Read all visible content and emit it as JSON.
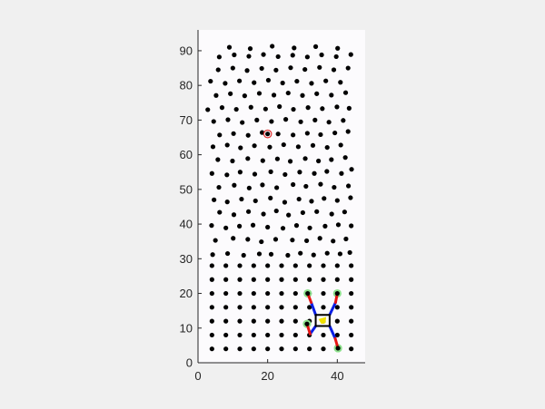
{
  "figure": {
    "background": "#f0f0f0",
    "axes_background": "#fcfbfd"
  },
  "chart_data": {
    "type": "scatter",
    "title": "",
    "xlabel": "",
    "ylabel": "",
    "xlim": [
      0,
      48
    ],
    "ylim": [
      0,
      96
    ],
    "xticks": [
      0,
      20,
      40
    ],
    "yticks": [
      0,
      10,
      20,
      30,
      40,
      50,
      60,
      70,
      80,
      90
    ],
    "grid": false,
    "colors": {
      "points": "#000000",
      "target_ring": "#e03030",
      "contact": "#8ce08c",
      "leg_upper": "#0a1ee6",
      "leg_lower": "#e61414",
      "body_outline": "#000000",
      "body_center": "#f0e000"
    },
    "series": [
      {
        "role": "grid-points",
        "rows": [
          {
            "y": 4,
            "x": [
              4,
              8,
              12,
              16,
              20,
              24,
              28,
              32,
              36,
              40,
              44
            ]
          },
          {
            "y": 8,
            "x": [
              4,
              8,
              12,
              16,
              20,
              24,
              28,
              32,
              36,
              40,
              44
            ]
          },
          {
            "y": 12,
            "x": [
              4,
              8,
              12,
              16,
              20,
              24,
              28,
              32,
              36,
              40,
              44
            ]
          },
          {
            "y": 16,
            "x": [
              4,
              8,
              12,
              16,
              20,
              24,
              28,
              32,
              36,
              40,
              44
            ]
          },
          {
            "y": 20,
            "x": [
              4,
              8,
              12,
              16,
              20,
              24,
              28,
              32,
              36,
              40,
              44
            ]
          },
          {
            "y": 24,
            "x": [
              4,
              8,
              12,
              16,
              20,
              24,
              28,
              32,
              36,
              40,
              44
            ]
          },
          {
            "y": 28,
            "x": [
              4,
              8,
              12,
              16,
              20,
              24,
              28,
              32,
              36,
              40,
              44
            ]
          }
        ]
      },
      {
        "role": "random-points",
        "points": [
          [
            4.2,
            31.2
          ],
          [
            8.5,
            31.5
          ],
          [
            13.1,
            31.0
          ],
          [
            17.6,
            31.4
          ],
          [
            21.0,
            31.3
          ],
          [
            25.8,
            31.0
          ],
          [
            29.4,
            31.6
          ],
          [
            33.2,
            31.1
          ],
          [
            37.1,
            31.6
          ],
          [
            40.8,
            31.4
          ],
          [
            43.6,
            31.8
          ],
          [
            5.0,
            35.3
          ],
          [
            10.1,
            35.9
          ],
          [
            14.3,
            35.6
          ],
          [
            18.2,
            34.9
          ],
          [
            22.3,
            35.6
          ],
          [
            27.1,
            35.4
          ],
          [
            31.2,
            35.2
          ],
          [
            35.0,
            35.9
          ],
          [
            38.8,
            35.1
          ],
          [
            42.5,
            35.7
          ],
          [
            3.9,
            39.6
          ],
          [
            8.0,
            38.9
          ],
          [
            11.9,
            39.4
          ],
          [
            15.8,
            39.7
          ],
          [
            20.0,
            39.1
          ],
          [
            24.4,
            38.8
          ],
          [
            28.3,
            39.6
          ],
          [
            32.1,
            38.9
          ],
          [
            36.5,
            39.4
          ],
          [
            40.3,
            39.8
          ],
          [
            44.0,
            39.5
          ],
          [
            6.2,
            43.4
          ],
          [
            10.3,
            42.7
          ],
          [
            14.5,
            43.6
          ],
          [
            18.8,
            42.9
          ],
          [
            22.5,
            43.8
          ],
          [
            26.0,
            42.6
          ],
          [
            30.1,
            43.3
          ],
          [
            34.1,
            43.6
          ],
          [
            38.4,
            42.9
          ],
          [
            42.1,
            43.5
          ],
          [
            4.6,
            47.0
          ],
          [
            8.4,
            46.4
          ],
          [
            12.5,
            47.2
          ],
          [
            16.5,
            46.7
          ],
          [
            20.8,
            47.5
          ],
          [
            24.9,
            46.3
          ],
          [
            29.0,
            47.2
          ],
          [
            32.6,
            46.6
          ],
          [
            36.2,
            47.4
          ],
          [
            40.0,
            46.8
          ],
          [
            43.8,
            47.6
          ],
          [
            6.0,
            50.6
          ],
          [
            10.4,
            51.2
          ],
          [
            14.7,
            50.4
          ],
          [
            18.5,
            51.3
          ],
          [
            22.6,
            50.5
          ],
          [
            27.3,
            51.4
          ],
          [
            31.0,
            50.9
          ],
          [
            35.2,
            51.5
          ],
          [
            39.1,
            50.6
          ],
          [
            43.2,
            51.0
          ],
          [
            4.0,
            54.6
          ],
          [
            8.3,
            54.2
          ],
          [
            12.1,
            55.0
          ],
          [
            16.3,
            54.4
          ],
          [
            20.9,
            55.1
          ],
          [
            25.0,
            54.3
          ],
          [
            29.2,
            55.0
          ],
          [
            33.4,
            54.6
          ],
          [
            37.0,
            55.2
          ],
          [
            41.2,
            54.6
          ],
          [
            44.1,
            55.8
          ],
          [
            5.7,
            58.6
          ],
          [
            9.9,
            58.2
          ],
          [
            14.3,
            58.9
          ],
          [
            18.6,
            58.3
          ],
          [
            22.8,
            58.8
          ],
          [
            26.5,
            58.1
          ],
          [
            30.8,
            58.9
          ],
          [
            34.6,
            58.2
          ],
          [
            38.3,
            58.6
          ],
          [
            42.3,
            59.2
          ],
          [
            4.3,
            62.3
          ],
          [
            8.4,
            62.8
          ],
          [
            12.2,
            62.0
          ],
          [
            16.2,
            62.6
          ],
          [
            20.6,
            62.2
          ],
          [
            24.6,
            62.9
          ],
          [
            28.8,
            62.3
          ],
          [
            33.0,
            62.7
          ],
          [
            37.1,
            62.1
          ],
          [
            41.0,
            62.8
          ],
          [
            6.2,
            65.7
          ],
          [
            10.2,
            66.1
          ],
          [
            14.4,
            65.6
          ],
          [
            18.4,
            66.4
          ],
          [
            23.0,
            66.0
          ],
          [
            27.3,
            65.7
          ],
          [
            31.4,
            66.2
          ],
          [
            35.2,
            65.8
          ],
          [
            39.3,
            66.3
          ],
          [
            43.1,
            66.7
          ],
          [
            4.5,
            69.6
          ],
          [
            8.6,
            70.1
          ],
          [
            12.7,
            69.3
          ],
          [
            16.9,
            70.0
          ],
          [
            21.1,
            69.6
          ],
          [
            25.2,
            70.2
          ],
          [
            29.5,
            69.5
          ],
          [
            33.6,
            70.0
          ],
          [
            37.6,
            69.4
          ],
          [
            41.7,
            69.9
          ],
          [
            2.8,
            73.0
          ],
          [
            6.9,
            73.6
          ],
          [
            11.0,
            73.1
          ],
          [
            15.2,
            73.7
          ],
          [
            19.4,
            73.2
          ],
          [
            23.4,
            73.9
          ],
          [
            27.4,
            73.1
          ],
          [
            31.6,
            73.6
          ],
          [
            35.7,
            73.3
          ],
          [
            39.9,
            73.8
          ],
          [
            43.4,
            73.4
          ],
          [
            5.2,
            77.1
          ],
          [
            9.3,
            77.6
          ],
          [
            13.4,
            77.0
          ],
          [
            17.6,
            77.7
          ],
          [
            21.8,
            77.2
          ],
          [
            25.9,
            77.8
          ],
          [
            30.0,
            77.1
          ],
          [
            34.1,
            77.6
          ],
          [
            38.3,
            77.2
          ],
          [
            42.4,
            77.9
          ],
          [
            3.6,
            81.2
          ],
          [
            7.8,
            80.6
          ],
          [
            11.9,
            81.3
          ],
          [
            16.1,
            80.8
          ],
          [
            20.2,
            81.5
          ],
          [
            24.3,
            80.7
          ],
          [
            28.4,
            81.2
          ],
          [
            32.6,
            80.6
          ],
          [
            36.7,
            81.3
          ],
          [
            40.9,
            80.9
          ],
          [
            5.8,
            84.5
          ],
          [
            10.0,
            85.0
          ],
          [
            14.1,
            84.3
          ],
          [
            18.3,
            84.9
          ],
          [
            22.4,
            84.4
          ],
          [
            26.6,
            85.1
          ],
          [
            30.7,
            84.6
          ],
          [
            34.9,
            85.2
          ],
          [
            39.0,
            84.5
          ],
          [
            43.1,
            85.0
          ],
          [
            6.1,
            88.2
          ],
          [
            10.4,
            88.8
          ],
          [
            14.6,
            88.4
          ],
          [
            18.8,
            88.9
          ],
          [
            23.0,
            88.3
          ],
          [
            27.2,
            88.7
          ],
          [
            31.4,
            88.2
          ],
          [
            35.5,
            88.8
          ],
          [
            39.7,
            88.3
          ],
          [
            43.9,
            88.9
          ],
          [
            9.0,
            91.0
          ],
          [
            15.0,
            90.6
          ],
          [
            21.3,
            91.3
          ],
          [
            27.6,
            90.8
          ],
          [
            33.8,
            91.2
          ],
          [
            40.1,
            90.7
          ]
        ]
      },
      {
        "role": "target-marker",
        "points": [
          [
            20,
            66
          ]
        ]
      }
    ],
    "robot": {
      "body_center": [
        35.8,
        12.2
      ],
      "body_half_size": [
        2.0,
        1.6
      ],
      "legs": [
        {
          "hip": [
            33.8,
            13.8
          ],
          "knee": [
            32.5,
            17.4
          ],
          "foot": [
            31.5,
            20.0
          ]
        },
        {
          "hip": [
            37.8,
            13.8
          ],
          "knee": [
            39.5,
            17.4
          ],
          "foot": [
            40.0,
            20.0
          ]
        },
        {
          "hip": [
            33.8,
            10.6
          ],
          "knee": [
            32.2,
            8.3
          ],
          "foot": [
            31.3,
            11.2
          ]
        },
        {
          "hip": [
            37.8,
            10.6
          ],
          "knee": [
            39.4,
            7.0
          ],
          "foot": [
            40.2,
            4.2
          ]
        }
      ]
    }
  }
}
